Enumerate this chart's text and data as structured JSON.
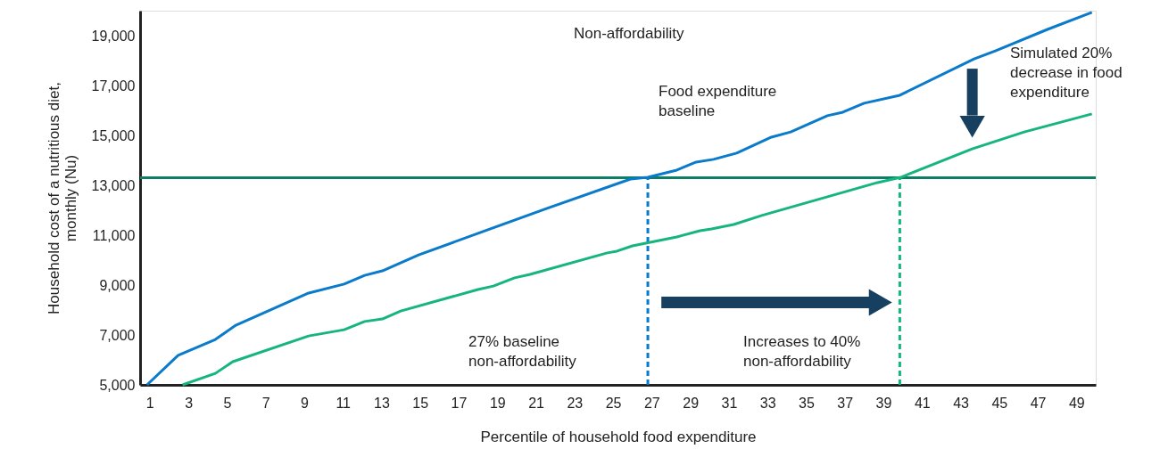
{
  "chart_data": {
    "type": "line",
    "xlabel": "Percentile of household food expenditure",
    "ylabel": "Household cost of a nutritious diet,\nmonthly (Nu)",
    "xlim": [
      0.5,
      50
    ],
    "ylim": [
      5000,
      20000
    ],
    "xticks": [
      1,
      3,
      5,
      7,
      9,
      11,
      13,
      15,
      17,
      19,
      21,
      23,
      25,
      27,
      29,
      31,
      33,
      35,
      37,
      39,
      41,
      43,
      45,
      47,
      49
    ],
    "yticks": [
      {
        "value": 5000,
        "label": "5,000"
      },
      {
        "value": 7000,
        "label": "7,000"
      },
      {
        "value": 9000,
        "label": "9,000"
      },
      {
        "value": 11000,
        "label": "11,000"
      },
      {
        "value": 13000,
        "label": "13,000"
      },
      {
        "value": 15000,
        "label": "15,000"
      },
      {
        "value": 17000,
        "label": "17,000"
      },
      {
        "value": 19000,
        "label": "19,000"
      }
    ],
    "grid": false,
    "marker": "none",
    "line_style": "solid",
    "series": [
      {
        "color": "#0a7acb",
        "x": [
          0.86,
          2.47,
          4.4,
          5.46,
          9.23,
          11.07,
          12.13,
          13.05,
          14.93,
          21.55,
          25.9,
          26.8,
          28.3,
          29.3,
          30.2,
          31.4,
          33.2,
          34.2,
          36.1,
          36.9,
          38.0,
          39.85,
          43.7,
          44.8,
          47.5,
          49.8
        ],
        "values": [
          5000,
          6180,
          6820,
          7390,
          8680,
          9040,
          9390,
          9570,
          10210,
          12070,
          13250,
          13320,
          13610,
          13930,
          14040,
          14290,
          14930,
          15140,
          15790,
          15930,
          16290,
          16610,
          18070,
          18390,
          19250,
          19930
        ]
      },
      {
        "color": "#17b57e",
        "x": [
          2.7,
          4.4,
          5.3,
          9.23,
          11.07,
          12.13,
          13.05,
          14.0,
          18.0,
          18.8,
          19.9,
          20.7,
          24.7,
          25.2,
          26.0,
          28.3,
          29.5,
          30.1,
          31.25,
          32.7,
          38.7,
          39.9,
          43.6,
          46.3,
          49.8
        ],
        "values": [
          5000,
          5460,
          5930,
          6960,
          7210,
          7540,
          7640,
          7960,
          8820,
          8960,
          9290,
          9430,
          10290,
          10360,
          10570,
          10930,
          11180,
          11250,
          11430,
          11790,
          13110,
          13320,
          14460,
          15140,
          15860
        ]
      }
    ],
    "ref_lines": [
      {
        "axis": "y",
        "value": 13300,
        "color": "#0d7f64",
        "line_style": "solid"
      },
      {
        "axis": "x",
        "value": 26.8,
        "color": "#0a7acb",
        "line_style": "dashed"
      },
      {
        "axis": "x",
        "value": 39.85,
        "color": "#17b57e",
        "line_style": "dashed"
      }
    ],
    "annotations": [
      "Non-affordability",
      "Food expenditure\nbaseline",
      "Simulated 20%\ndecrease in food\nexpenditure",
      "27% baseline\nnon-affordability",
      "Increases to 40%\nnon-affordability"
    ]
  }
}
